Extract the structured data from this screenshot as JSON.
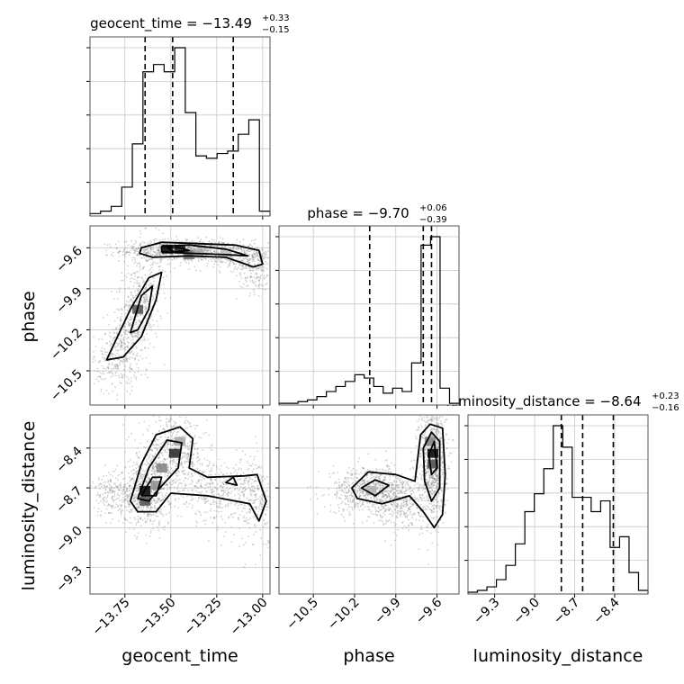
{
  "chart_data": {
    "type": "corner",
    "parameters": [
      "geocent_time",
      "phase",
      "luminosity_distance"
    ],
    "titles": [
      {
        "prefix": "geocent_time = −13.49",
        "sup": "+0.33",
        "sub": "−0.15"
      },
      {
        "prefix": "phase = −9.70",
        "sup": "+0.06",
        "sub": "−0.39"
      },
      {
        "prefix": "luminosity_distance = −8.64",
        "sup": "+0.23",
        "sub": "−0.16"
      }
    ],
    "axis_labels": {
      "x": [
        "geocent_time",
        "phase",
        "luminosity_distance"
      ],
      "y": [
        "phase",
        "luminosity_distance"
      ]
    },
    "ranges": {
      "geocent_time": [
        -13.94,
        -12.96
      ],
      "phase": [
        -10.75,
        -9.44
      ],
      "luminosity_distance": [
        -9.5,
        -8.15
      ]
    },
    "ticks": {
      "geocent_time": {
        "values": [
          -13.75,
          -13.5,
          -13.25,
          -13.0
        ],
        "labels": [
          "−13.75",
          "−13.50",
          "−13.25",
          "−13.00"
        ]
      },
      "phase": {
        "values": [
          -10.5,
          -10.2,
          -9.9,
          -9.6
        ],
        "labels": [
          "−10.5",
          "−10.2",
          "−9.9",
          "−9.6"
        ]
      },
      "luminosity_distance": {
        "values": [
          -9.3,
          -9.0,
          -8.7,
          -8.4
        ],
        "labels": [
          "−9.3",
          "−9.0",
          "−8.7",
          "−8.4"
        ]
      }
    },
    "quantiles": {
      "geocent_time": [
        -13.64,
        -13.49,
        -13.16
      ],
      "phase": [
        -10.09,
        -9.7,
        -9.64
      ],
      "luminosity_distance": [
        -8.8,
        -8.64,
        -8.41
      ]
    },
    "histograms": {
      "geocent_time": [
        1,
        2,
        4,
        12,
        30,
        60,
        63,
        60,
        70,
        43,
        25,
        24,
        26,
        27,
        34,
        40,
        2
      ],
      "phase": [
        1,
        1,
        2,
        3,
        5,
        8,
        11,
        14,
        18,
        16,
        11,
        7,
        10,
        8,
        25,
        95,
        100,
        10,
        1
      ],
      "luminosity_distance": [
        0.5,
        1,
        2,
        4,
        8,
        14,
        23,
        28,
        35,
        47,
        41,
        27,
        27,
        23,
        26,
        13,
        16,
        6,
        1
      ]
    },
    "grid": true
  }
}
